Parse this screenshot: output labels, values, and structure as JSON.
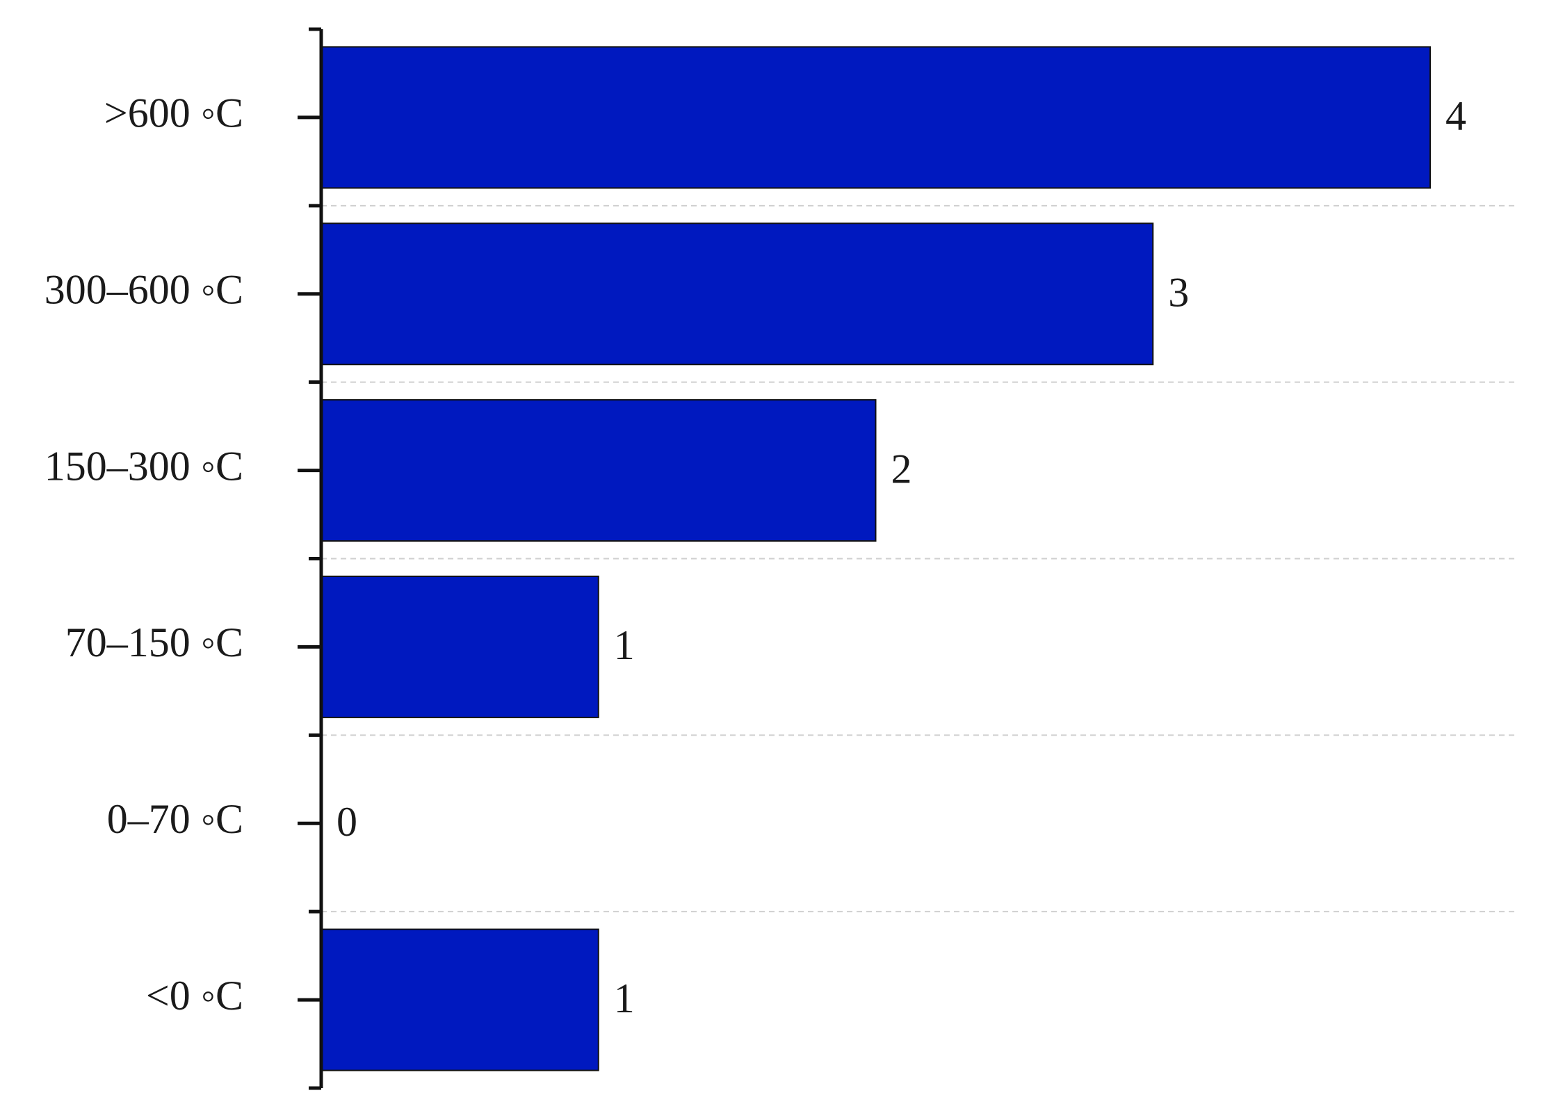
{
  "chart_data": {
    "type": "bar",
    "orientation": "horizontal",
    "categories": [
      ">600 ◦C",
      "300–600 ◦C",
      "150–300 ◦C",
      "70–150 ◦C",
      "0–70 ◦C",
      "<0 ◦C"
    ],
    "values": [
      4,
      3,
      2,
      1,
      0,
      1
    ],
    "title": "",
    "xlabel": "",
    "ylabel": "",
    "xlim": [
      0,
      4
    ],
    "bar_color": "#0019bf",
    "grid": "dashed horizontal separators",
    "legend": "none",
    "data_labels": true
  }
}
